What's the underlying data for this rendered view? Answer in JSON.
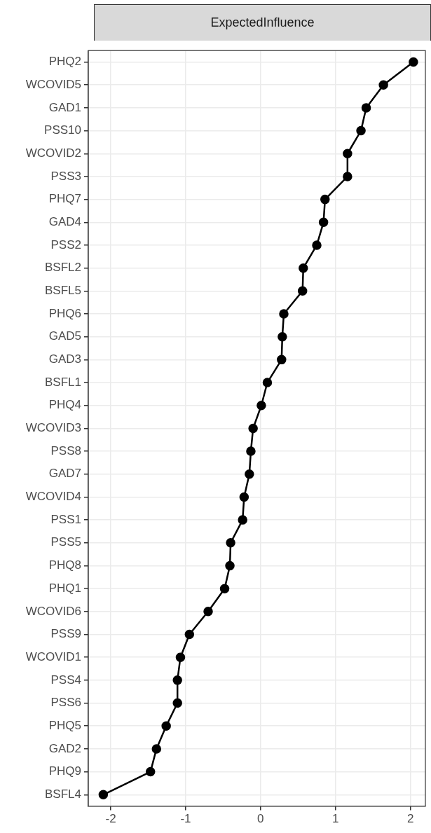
{
  "chart_data": {
    "type": "line",
    "title": "ExpectedInfluence",
    "orientation": "horizontal",
    "categories": [
      "PHQ2",
      "WCOVID5",
      "GAD1",
      "PSS10",
      "WCOVID2",
      "PSS3",
      "PHQ7",
      "GAD4",
      "PSS2",
      "BSFL2",
      "BSFL5",
      "PHQ6",
      "GAD5",
      "GAD3",
      "BSFL1",
      "PHQ4",
      "WCOVID3",
      "PSS8",
      "GAD7",
      "WCOVID4",
      "PSS1",
      "PSS5",
      "PHQ8",
      "PHQ1",
      "WCOVID6",
      "PSS9",
      "WCOVID1",
      "PSS4",
      "PSS6",
      "PHQ5",
      "GAD2",
      "PHQ9",
      "BSFL4"
    ],
    "series": [
      {
        "color": "#000000",
        "values": [
          2.04,
          1.64,
          1.41,
          1.34,
          1.16,
          1.16,
          0.86,
          0.84,
          0.75,
          0.57,
          0.56,
          0.31,
          0.29,
          0.28,
          0.09,
          0.01,
          -0.1,
          -0.13,
          -0.15,
          -0.22,
          -0.24,
          -0.4,
          -0.41,
          -0.48,
          -0.7,
          -0.95,
          -1.07,
          -1.11,
          -1.11,
          -1.26,
          -1.39,
          -1.47,
          -2.1
        ]
      }
    ],
    "xlim": [
      -2.3,
      2.2
    ],
    "xticks": [
      -2,
      -1,
      0,
      1,
      2
    ],
    "grid": true,
    "marker": "circle",
    "line_style": "solid",
    "legend": false
  }
}
